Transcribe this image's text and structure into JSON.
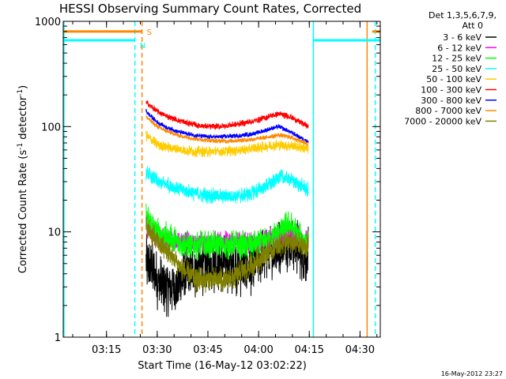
{
  "chart_data": {
    "type": "line",
    "title": "HESSI Observing Summary Count Rates, Corrected",
    "xlabel": "Start Time (16-May-12 03:02:22)",
    "ylabel_main": "Corrected Count Rate (s",
    "ylabel_sup1": "-1",
    "ylabel_mid": " detector",
    "ylabel_sup2": "-1",
    "ylabel_end": ")",
    "yscale": "log",
    "ylim": [
      1,
      1000
    ],
    "xlim_minutes": [
      3.03667,
      4.6
    ],
    "x_ticks": [
      {
        "label": "03:15",
        "hour": 3.25
      },
      {
        "label": "03:30",
        "hour": 3.5
      },
      {
        "label": "03:45",
        "hour": 3.75
      },
      {
        "label": "04:00",
        "hour": 4.0
      },
      {
        "label": "04:15",
        "hour": 4.25
      },
      {
        "label": "04:30",
        "hour": 4.5
      }
    ],
    "y_ticks": [
      {
        "label": "1",
        "value": 1
      },
      {
        "label": "10",
        "value": 10
      },
      {
        "label": "100",
        "value": 100
      },
      {
        "label": "1000",
        "value": 1000
      }
    ],
    "legend_header": [
      "Det 1,3,5,6,7,9,",
      "Att 0"
    ],
    "legend_position": "right",
    "series": [
      {
        "name": "3 - 6 keV",
        "color": "#000000",
        "x": [
          3.445,
          3.47,
          3.5,
          3.53,
          3.56,
          3.6,
          3.65,
          3.7,
          3.75,
          3.8,
          3.85,
          3.9,
          3.95,
          4.0,
          4.05,
          4.1,
          4.13,
          4.17,
          4.2,
          4.22,
          4.245
        ],
        "y": [
          5,
          4.5,
          3.5,
          3,
          3,
          3,
          4,
          4.5,
          5,
          5,
          5,
          4.5,
          4.5,
          5.5,
          6.5,
          7,
          8,
          8,
          7,
          6,
          6
        ],
        "noise": 0.18
      },
      {
        "name": "6 - 12 keV",
        "color": "#ff00ff",
        "x": [
          3.445,
          3.47,
          3.5,
          3.55,
          3.6,
          3.65,
          3.7,
          3.75,
          3.8,
          3.85,
          3.9,
          3.95,
          4.0,
          4.05,
          4.1,
          4.15,
          4.2,
          4.245
        ],
        "y": [
          11,
          10,
          9,
          8.5,
          8,
          8,
          8,
          8,
          8,
          8,
          8,
          8,
          8,
          8.5,
          9,
          10,
          9,
          8
        ],
        "noise": 0.07
      },
      {
        "name": "12 - 25 keV",
        "color": "#00ff00",
        "x": [
          3.445,
          3.47,
          3.5,
          3.55,
          3.6,
          3.65,
          3.7,
          3.75,
          3.8,
          3.85,
          3.9,
          3.95,
          4.0,
          4.05,
          4.1,
          4.15,
          4.2,
          4.245
        ],
        "y": [
          14,
          12,
          10,
          9,
          8,
          7.5,
          7.5,
          7.5,
          7.5,
          7.5,
          7.5,
          7.5,
          7.5,
          8.5,
          10,
          12,
          9,
          7.5
        ],
        "noise": 0.09
      },
      {
        "name": "25 - 50 keV",
        "color": "#00ffff",
        "x": [
          3.445,
          3.47,
          3.5,
          3.55,
          3.6,
          3.65,
          3.7,
          3.75,
          3.8,
          3.85,
          3.9,
          3.95,
          4.0,
          4.05,
          4.1,
          4.15,
          4.2,
          4.245
        ],
        "y": [
          37,
          33,
          30,
          28,
          26,
          24,
          23,
          22,
          22,
          22,
          22,
          23,
          25,
          28,
          33,
          32,
          28,
          25
        ],
        "noise": 0.05
      },
      {
        "name": "50 - 100 keV",
        "color": "#ffcc00",
        "x": [
          3.445,
          3.47,
          3.5,
          3.55,
          3.6,
          3.65,
          3.7,
          3.75,
          3.8,
          3.85,
          3.9,
          3.95,
          4.0,
          4.05,
          4.1,
          4.15,
          4.2,
          4.245
        ],
        "y": [
          82,
          75,
          68,
          64,
          61,
          59,
          58,
          58,
          58,
          59,
          60,
          61,
          63,
          65,
          67,
          66,
          64,
          62
        ],
        "noise": 0.035
      },
      {
        "name": "100 - 300 keV",
        "color": "#ff0000",
        "x": [
          3.445,
          3.47,
          3.5,
          3.55,
          3.6,
          3.65,
          3.7,
          3.75,
          3.8,
          3.85,
          3.9,
          3.95,
          4.0,
          4.05,
          4.1,
          4.15,
          4.2,
          4.245
        ],
        "y": [
          170,
          155,
          140,
          125,
          115,
          108,
          103,
          100,
          100,
          102,
          106,
          110,
          116,
          125,
          132,
          125,
          112,
          100
        ],
        "noise": 0.02
      },
      {
        "name": "300 - 800 keV",
        "color": "#0000ff",
        "x": [
          3.445,
          3.47,
          3.5,
          3.55,
          3.6,
          3.65,
          3.7,
          3.75,
          3.8,
          3.85,
          3.9,
          3.95,
          4.0,
          4.05,
          4.1,
          4.15,
          4.2,
          4.245
        ],
        "y": [
          140,
          125,
          110,
          98,
          90,
          85,
          82,
          80,
          80,
          81,
          82,
          84,
          88,
          94,
          100,
          90,
          80,
          72
        ],
        "noise": 0.015
      },
      {
        "name": "800 - 7000 keV",
        "color": "#ff8800",
        "x": [
          3.445,
          3.47,
          3.5,
          3.55,
          3.6,
          3.65,
          3.7,
          3.75,
          3.8,
          3.85,
          3.9,
          3.95,
          4.0,
          4.05,
          4.1,
          4.15,
          4.2,
          4.245
        ],
        "y": [
          125,
          112,
          100,
          90,
          83,
          79,
          76,
          74,
          73,
          73,
          74,
          75,
          77,
          80,
          83,
          80,
          74,
          68
        ],
        "noise": 0.015
      },
      {
        "name": "7000 - 20000 keV",
        "color": "#808000",
        "x": [
          3.445,
          3.47,
          3.5,
          3.55,
          3.6,
          3.65,
          3.7,
          3.75,
          3.8,
          3.85,
          3.9,
          3.95,
          4.0,
          4.05,
          4.1,
          4.15,
          4.2,
          4.245
        ],
        "y": [
          11,
          9.5,
          8,
          6.5,
          5,
          4,
          3.5,
          3.5,
          3.5,
          3.5,
          4,
          4.5,
          5.5,
          6.5,
          7.5,
          8,
          7.5,
          7
        ],
        "noise": 0.08
      }
    ],
    "flag_lines": [
      {
        "label": "S",
        "color": "#ff8800",
        "hour_start": 3.04,
        "hour_end": 3.425,
        "value": 800
      },
      {
        "label": "S",
        "color": "#ff8800",
        "hour_start": 4.56,
        "hour_end": 4.6,
        "value": 800
      },
      {
        "label": "N",
        "color": "#00ffff",
        "hour_start": 3.04,
        "hour_end": 3.39,
        "value": 660
      },
      {
        "label": "N",
        "color": "#00ffff",
        "hour_start": 4.27,
        "hour_end": 4.6,
        "value": 660
      }
    ],
    "vertical_lines": [
      {
        "color": "#00ffff",
        "hour": 3.04,
        "dashed": false
      },
      {
        "color": "#00ffff",
        "hour": 3.39,
        "dashed": true
      },
      {
        "color": "#ff8800",
        "hour": 3.425,
        "dashed": true
      },
      {
        "color": "#00ffff",
        "hour": 4.27,
        "dashed": false
      },
      {
        "color": "#ff8800",
        "hour": 4.535,
        "dashed": false
      },
      {
        "color": "#00ffff",
        "hour": 4.575,
        "dashed": true
      }
    ],
    "grid": false
  },
  "footer": {
    "timestamp": "16-May-2012 23:27"
  }
}
